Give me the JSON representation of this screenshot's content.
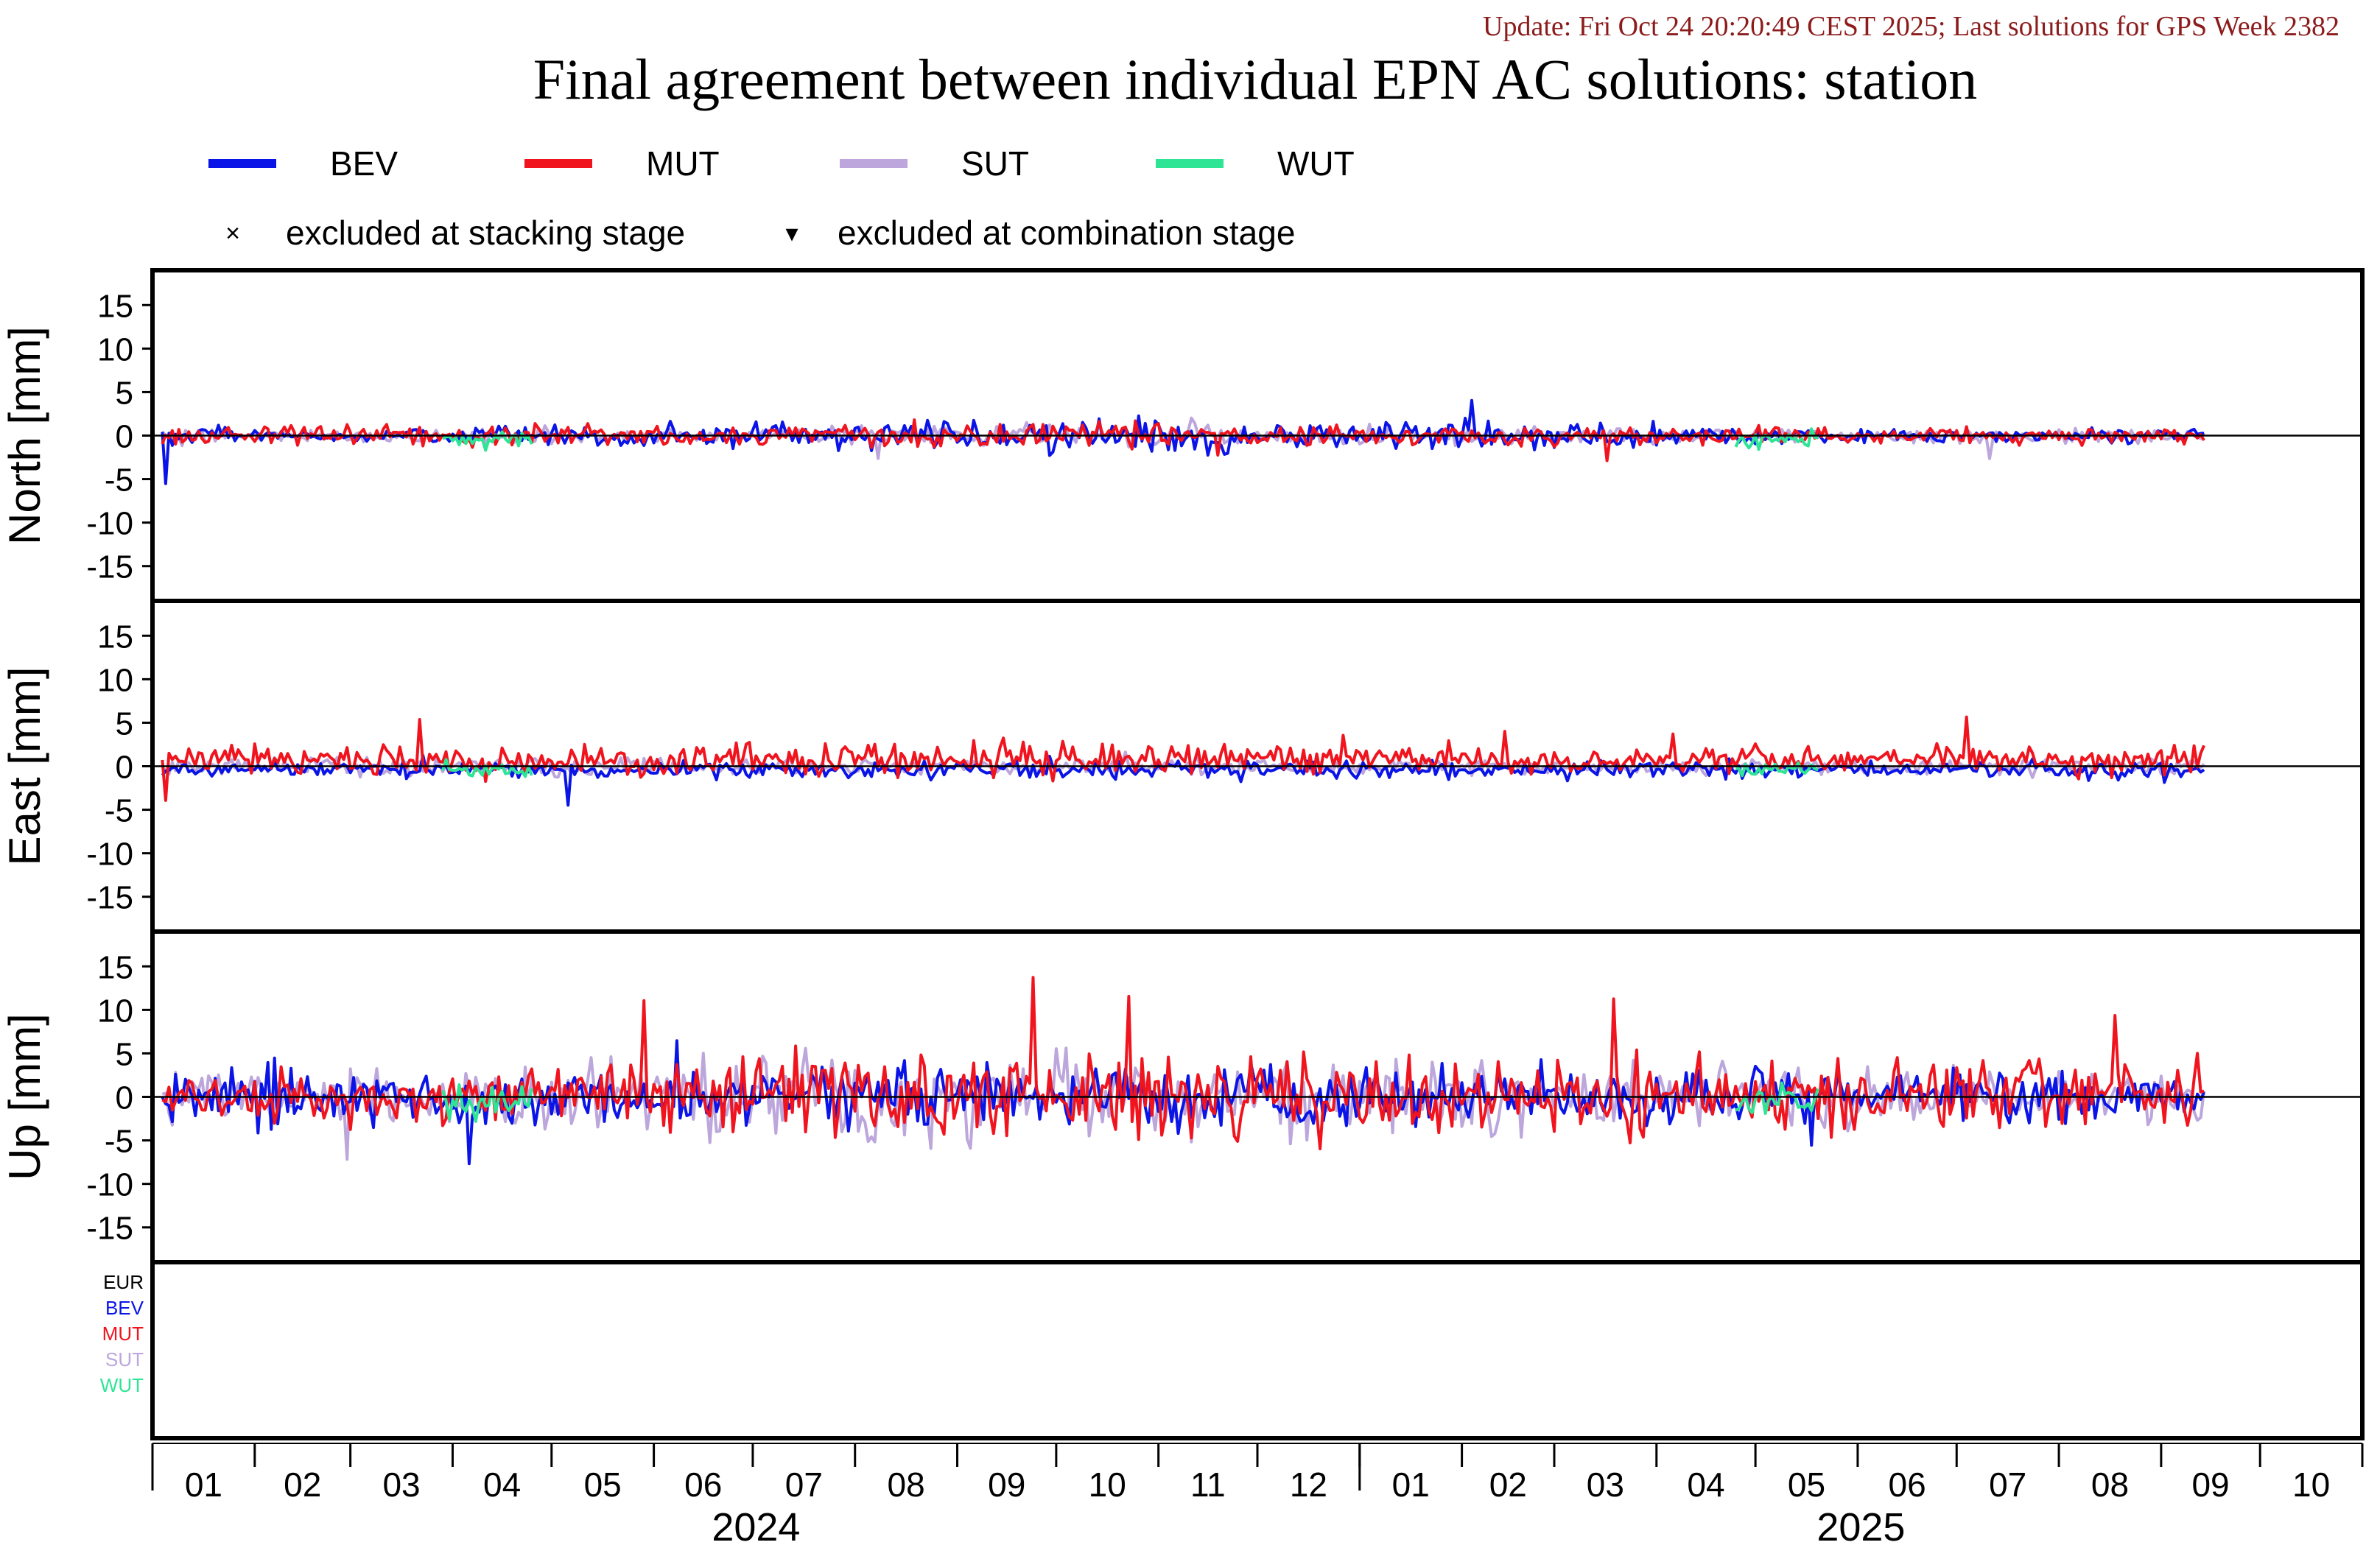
{
  "header": {
    "update_text": "Update: Fri Oct 24 20:20:49 CEST 2025; Last solutions for GPS Week 2382",
    "title": "Final agreement between individual EPN AC solutions: station"
  },
  "colors": {
    "BEV": "#0a14e6",
    "MUT": "#f0141e",
    "SUT": "#bca6dc",
    "WUT": "#2ee596",
    "EUR": "#000000",
    "update": "#8c1c1c"
  },
  "legend": {
    "items": [
      {
        "key": "BEV",
        "label": "BEV"
      },
      {
        "key": "MUT",
        "label": "MUT"
      },
      {
        "key": "SUT",
        "label": "SUT"
      },
      {
        "key": "WUT",
        "label": "WUT"
      }
    ],
    "markers": [
      {
        "symbol": "×",
        "label": "excluded at stacking stage"
      },
      {
        "symbol": "▾",
        "label": "excluded at combination stage"
      }
    ]
  },
  "chart_data": [
    {
      "type": "line",
      "ylabel": "North [mm]",
      "ylim": [
        -19,
        19
      ],
      "yticks": [
        15,
        10,
        5,
        0,
        -5,
        -10,
        -15
      ],
      "grid": false,
      "zero_line": true,
      "series": [
        {
          "name": "BEV",
          "profile": [
            [
              0,
              1.0
            ],
            [
              45,
              0.4
            ],
            [
              320,
              1.5
            ],
            [
              560,
              0.5
            ],
            [
              640,
              0.6
            ],
            [
              760,
              1.0
            ],
            [
              800,
              0.6
            ]
          ]
        },
        {
          "name": "MUT",
          "profile": [
            [
              0,
              1.0
            ],
            [
              45,
              0.7
            ],
            [
              320,
              1.0
            ],
            [
              500,
              0.6
            ],
            [
              640,
              0.7
            ],
            [
              760,
              0.8
            ],
            [
              800,
              0.7
            ]
          ]
        },
        {
          "name": "SUT",
          "profile": [
            [
              0,
              0.8
            ],
            [
              45,
              0.5
            ],
            [
              320,
              0.8
            ],
            [
              560,
              0.5
            ],
            [
              640,
              0.7
            ],
            [
              800,
              0.6
            ]
          ]
        },
        {
          "name": "WUT",
          "ranges": [
            [
              88,
              115
            ],
            [
              480,
              505
            ]
          ],
          "amplitude": 0.8
        }
      ]
    },
    {
      "type": "line",
      "ylabel": "East [mm]",
      "ylim": [
        -19,
        19
      ],
      "yticks": [
        15,
        10,
        5,
        0,
        -5,
        -10,
        -15
      ],
      "grid": false,
      "zero_line": true,
      "series": [
        {
          "name": "BEV",
          "profile": [
            [
              0,
              0.6
            ],
            [
              300,
              0.7
            ],
            [
              560,
              0.6
            ],
            [
              640,
              0.9
            ],
            [
              800,
              0.7
            ]
          ],
          "offset": -0.5
        },
        {
          "name": "MUT",
          "profile": [
            [
              0,
              1.0
            ],
            [
              200,
              1.3
            ],
            [
              320,
              1.2
            ],
            [
              500,
              0.9
            ],
            [
              640,
              1.1
            ],
            [
              800,
              0.8
            ]
          ],
          "offset": 1.0
        },
        {
          "name": "SUT",
          "profile": [
            [
              0,
              0.7
            ],
            [
              800,
              0.6
            ]
          ]
        },
        {
          "name": "WUT",
          "ranges": [
            [
              88,
              115
            ],
            [
              480,
              505
            ]
          ],
          "amplitude": 0.6
        }
      ]
    },
    {
      "type": "line",
      "ylabel": "Up [mm]",
      "ylim": [
        -19,
        19
      ],
      "yticks": [
        15,
        10,
        5,
        0,
        -5,
        -10,
        -15
      ],
      "grid": false,
      "zero_line": true,
      "series": [
        {
          "name": "BEV",
          "profile": [
            [
              0,
              2.5
            ],
            [
              140,
              2.0
            ],
            [
              320,
              2.6
            ],
            [
              420,
              2.3
            ],
            [
              560,
              1.8
            ],
            [
              640,
              2.0
            ],
            [
              760,
              2.4
            ],
            [
              800,
              2.0
            ]
          ]
        },
        {
          "name": "MUT",
          "profile": [
            [
              0,
              1.6
            ],
            [
              140,
              2.2
            ],
            [
              200,
              3.5
            ],
            [
              320,
              3.6
            ],
            [
              420,
              2.8
            ],
            [
              560,
              2.6
            ],
            [
              640,
              3.0
            ],
            [
              720,
              3.8
            ],
            [
              800,
              3.6
            ]
          ],
          "offset_profile": [
            [
              0,
              0
            ],
            [
              560,
              0
            ],
            [
              620,
              0.6
            ],
            [
              700,
              2.5
            ],
            [
              800,
              2.4
            ]
          ]
        },
        {
          "name": "SUT",
          "profile": [
            [
              0,
              1.8
            ],
            [
              140,
              2.5
            ],
            [
              200,
              3.8
            ],
            [
              320,
              3.4
            ],
            [
              420,
              2.6
            ],
            [
              560,
              2.0
            ],
            [
              640,
              2.2
            ],
            [
              800,
              3.6
            ]
          ]
        },
        {
          "name": "WUT",
          "ranges": [
            [
              88,
              115
            ],
            [
              480,
              505
            ]
          ],
          "amplitude": 1.4
        }
      ]
    }
  ],
  "ac_panel": {
    "labels": [
      {
        "key": "EUR",
        "text": "EUR"
      },
      {
        "key": "BEV",
        "text": "BEV"
      },
      {
        "key": "MUT",
        "text": "MUT"
      },
      {
        "key": "SUT",
        "text": "SUT"
      },
      {
        "key": "WUT",
        "text": "WUT"
      }
    ]
  },
  "x_axis": {
    "months": [
      {
        "label": "01",
        "start": 0
      },
      {
        "label": "02",
        "start": 31
      },
      {
        "label": "03",
        "start": 60
      },
      {
        "label": "04",
        "start": 91
      },
      {
        "label": "05",
        "start": 121
      },
      {
        "label": "06",
        "start": 152
      },
      {
        "label": "07",
        "start": 182
      },
      {
        "label": "08",
        "start": 213
      },
      {
        "label": "09",
        "start": 244
      },
      {
        "label": "10",
        "start": 274
      },
      {
        "label": "11",
        "start": 305
      },
      {
        "label": "12",
        "start": 335
      },
      {
        "label": "01",
        "start": 366
      },
      {
        "label": "02",
        "start": 397
      },
      {
        "label": "03",
        "start": 425
      },
      {
        "label": "04",
        "start": 456
      },
      {
        "label": "05",
        "start": 486
      },
      {
        "label": "06",
        "start": 517
      },
      {
        "label": "07",
        "start": 547
      },
      {
        "label": "08",
        "start": 578
      },
      {
        "label": "09",
        "start": 609
      },
      {
        "label": "10",
        "start": 639
      }
    ],
    "range_end": 670,
    "years": [
      {
        "label": "2024",
        "start": 0,
        "end": 366
      },
      {
        "label": "2025",
        "start": 366,
        "end": 670
      }
    ],
    "data_start": 3,
    "data_end": 622
  }
}
